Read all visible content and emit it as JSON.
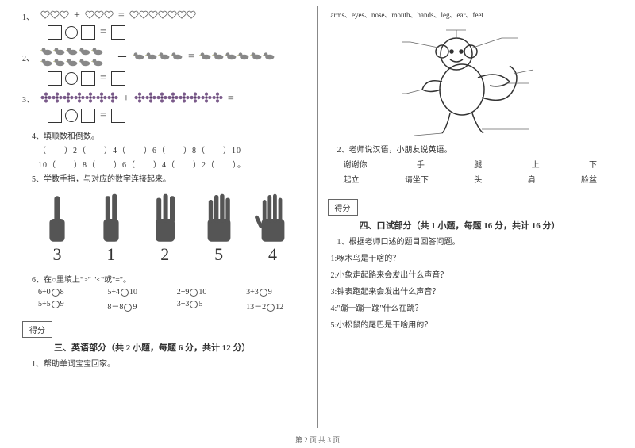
{
  "footer": "第 2 页  共 3 页",
  "left": {
    "q1": {
      "num": "1、",
      "heart_count_a": 3,
      "heart_count_b": 3,
      "heart_count_c": 7,
      "plus": "+",
      "eq": "="
    },
    "q2": {
      "num": "2、",
      "duck_a": 10,
      "duck_b": 4,
      "duck_c": 6,
      "minus": "－",
      "eq": "="
    },
    "q3": {
      "num": "3、",
      "flower_a": 7,
      "flower_b": 8,
      "plus": "+",
      "eq": "="
    },
    "q4": {
      "num": "4、填顺数和倒数。",
      "line1": "（　　）2（　　）4（　　）6（　　）8（　　）10",
      "line2": "10（　　）8（　　）6（　　）4（　　）2（　　）。"
    },
    "q5": {
      "num": "5、学数手指，与对应的数字连接起来。",
      "nums": [
        "3",
        "1",
        "2",
        "5",
        "4"
      ]
    },
    "q6": {
      "num": "6、在○里填上\">\" \"<\"或\"=\"。",
      "items": [
        "6+0○8",
        "5+4○10",
        "2+9○10",
        "3+3○9",
        "5+5○9",
        "8－8○9",
        "3+3○5",
        "13－2○12"
      ]
    },
    "sec3": {
      "score": "得分",
      "title": "三、英语部分（共 2 小题，每题 6 分，共计 12 分）",
      "s1": "1、帮助单词宝宝回家。"
    }
  },
  "right": {
    "words": "arms、eyes、nose、mouth、hands、leg、ear、feet",
    "s2": {
      "title": "2、老师说汉语，小朋友说英语。",
      "row1": [
        "谢谢你",
        "手",
        "腿",
        "上",
        "下"
      ],
      "row2": [
        "起立",
        "请坐下",
        "头",
        "肩",
        "脸盆"
      ]
    },
    "sec4": {
      "score": "得分",
      "title": "四、口试部分（共 1 小题，每题 16 分，共计 16 分）",
      "s1": "1、根据老师口述的题目回答问题。",
      "q": [
        "1:啄木鸟是干啥的？",
        "2:小象走起路来会发出什么声音？",
        "3:钟表跑起来会发出什么声音？",
        "4:\"蹦一蹦一蹦\"什么在跳？",
        "5:小松鼠的尾巴是干啥用的？"
      ]
    }
  }
}
